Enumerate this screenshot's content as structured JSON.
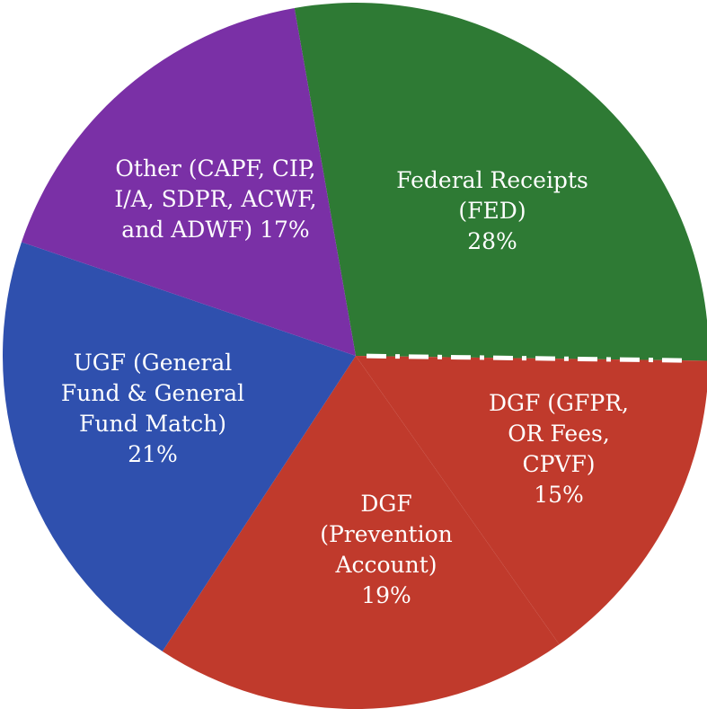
{
  "chart_data": {
    "type": "pie",
    "categories": [
      "Federal Receipts (FED)",
      "DGF (GFPR, OR Fees, CPVF)",
      "DGF (Prevention Account)",
      "UGF (General Fund & General Fund Match)",
      "Other (CAPF, CIP, I/A, SDPR, ACWF, and ADWF)"
    ],
    "values": [
      28,
      15,
      19,
      21,
      17
    ],
    "value_labels": [
      "28%",
      "15%",
      "19%",
      "21%",
      "17%"
    ],
    "colors": [
      "#2e7a34",
      "#c03a2c",
      "#c03a2c",
      "#2f50ae",
      "#7a30a6"
    ]
  }
}
